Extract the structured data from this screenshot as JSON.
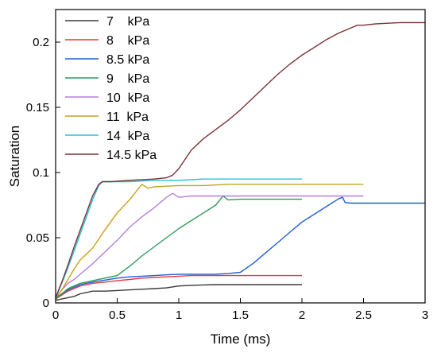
{
  "chart_data": {
    "type": "line",
    "title": "",
    "xlabel": "Time (ms)",
    "ylabel": "Saturation",
    "xlim": [
      0,
      3
    ],
    "ylim": [
      0,
      0.225
    ],
    "xticks": [
      0,
      0.5,
      1,
      1.5,
      2,
      2.5,
      3
    ],
    "xtick_labels": [
      "0",
      "0.5",
      "1",
      "1.5",
      "2",
      "2.5",
      "3"
    ],
    "yticks": [
      0,
      0.05,
      0.1,
      0.15,
      0.2
    ],
    "ytick_labels": [
      "0",
      "0.05",
      "0.1",
      "0.15",
      "0.2"
    ],
    "grid": false,
    "legend_position": "top-left",
    "series": [
      {
        "name": "7    kPa",
        "color": "#3a3a3a",
        "x": [
          0,
          0.05,
          0.1,
          0.15,
          0.2,
          0.25,
          0.3,
          0.35,
          0.4,
          0.5,
          0.6,
          0.7,
          0.8,
          0.9,
          1.0,
          1.1,
          1.2,
          1.3,
          1.4,
          1.5,
          1.6,
          1.7,
          1.8,
          1.9,
          2.0
        ],
        "y": [
          0.002,
          0.003,
          0.004,
          0.005,
          0.007,
          0.008,
          0.009,
          0.009,
          0.009,
          0.0095,
          0.01,
          0.0105,
          0.011,
          0.0115,
          0.013,
          0.0135,
          0.0138,
          0.014,
          0.014,
          0.014,
          0.014,
          0.014,
          0.014,
          0.014,
          0.014
        ]
      },
      {
        "name": "8    kPa",
        "color": "#e8383c",
        "x": [
          0,
          0.05,
          0.1,
          0.15,
          0.2,
          0.3,
          0.4,
          0.5,
          0.6,
          0.7,
          0.8,
          0.9,
          1.0,
          1.1,
          1.2,
          1.3,
          1.4,
          1.5,
          1.6,
          1.7,
          1.8,
          1.9,
          2.0
        ],
        "y": [
          0.003,
          0.006,
          0.009,
          0.011,
          0.013,
          0.015,
          0.016,
          0.017,
          0.018,
          0.019,
          0.0195,
          0.02,
          0.0205,
          0.021,
          0.021,
          0.021,
          0.021,
          0.021,
          0.021,
          0.021,
          0.021,
          0.021,
          0.021
        ]
      },
      {
        "name": "8.5 kPa",
        "color": "#1f5fd6",
        "x": [
          0,
          0.05,
          0.1,
          0.15,
          0.2,
          0.3,
          0.4,
          0.5,
          0.6,
          0.7,
          0.8,
          0.9,
          1.0,
          1.1,
          1.2,
          1.3,
          1.4,
          1.5,
          1.6,
          1.7,
          1.8,
          1.9,
          2.0,
          2.1,
          2.2,
          2.3,
          2.33,
          2.35,
          2.4,
          2.5,
          2.6,
          2.7,
          2.8,
          2.9,
          3.0
        ],
        "y": [
          0.004,
          0.007,
          0.01,
          0.012,
          0.014,
          0.016,
          0.0175,
          0.019,
          0.02,
          0.0205,
          0.021,
          0.0215,
          0.022,
          0.022,
          0.022,
          0.022,
          0.0225,
          0.0235,
          0.03,
          0.038,
          0.046,
          0.054,
          0.062,
          0.068,
          0.074,
          0.08,
          0.081,
          0.077,
          0.0765,
          0.0765,
          0.0765,
          0.0765,
          0.0765,
          0.0765,
          0.0765
        ]
      },
      {
        "name": "9    kPa",
        "color": "#2e9a58",
        "x": [
          0,
          0.05,
          0.1,
          0.15,
          0.2,
          0.3,
          0.4,
          0.5,
          0.6,
          0.7,
          0.8,
          0.9,
          1.0,
          1.1,
          1.2,
          1.3,
          1.36,
          1.4,
          1.5,
          1.6,
          1.7,
          1.8,
          1.9,
          2.0
        ],
        "y": [
          0.003,
          0.007,
          0.011,
          0.013,
          0.015,
          0.017,
          0.019,
          0.021,
          0.028,
          0.036,
          0.043,
          0.05,
          0.057,
          0.063,
          0.069,
          0.075,
          0.082,
          0.079,
          0.0795,
          0.0795,
          0.0795,
          0.0795,
          0.0795,
          0.0795
        ]
      },
      {
        "name": "10  kPa",
        "color": "#b57fe0",
        "x": [
          0,
          0.05,
          0.1,
          0.15,
          0.2,
          0.3,
          0.4,
          0.5,
          0.6,
          0.7,
          0.8,
          0.9,
          0.95,
          1.0,
          1.1,
          1.2,
          1.4,
          1.6,
          1.8,
          2.0,
          2.2,
          2.4,
          2.5
        ],
        "y": [
          0.004,
          0.01,
          0.015,
          0.018,
          0.022,
          0.03,
          0.039,
          0.048,
          0.058,
          0.066,
          0.073,
          0.081,
          0.084,
          0.081,
          0.082,
          0.082,
          0.082,
          0.082,
          0.082,
          0.082,
          0.082,
          0.082,
          0.082
        ]
      },
      {
        "name": "11  kPa",
        "color": "#c7a11d",
        "x": [
          0,
          0.05,
          0.1,
          0.15,
          0.2,
          0.3,
          0.4,
          0.5,
          0.6,
          0.7,
          0.75,
          0.8,
          0.9,
          1.0,
          1.2,
          1.4,
          1.6,
          1.8,
          2.0,
          2.2,
          2.4,
          2.5
        ],
        "y": [
          0.004,
          0.01,
          0.018,
          0.026,
          0.033,
          0.042,
          0.056,
          0.069,
          0.079,
          0.091,
          0.088,
          0.089,
          0.0895,
          0.09,
          0.09,
          0.091,
          0.091,
          0.091,
          0.091,
          0.091,
          0.091,
          0.091
        ]
      },
      {
        "name": "14  kPa",
        "color": "#28c0d8",
        "x": [
          0,
          0.05,
          0.1,
          0.15,
          0.2,
          0.25,
          0.3,
          0.35,
          0.38,
          0.45,
          0.6,
          0.8,
          1.0,
          1.2,
          1.4,
          1.6,
          1.8,
          2.0
        ],
        "y": [
          0.004,
          0.015,
          0.027,
          0.04,
          0.053,
          0.066,
          0.079,
          0.09,
          0.093,
          0.093,
          0.093,
          0.094,
          0.094,
          0.095,
          0.095,
          0.095,
          0.095,
          0.095
        ]
      },
      {
        "name": "14.5 kPa",
        "color": "#7a3236",
        "x": [
          0,
          0.05,
          0.1,
          0.15,
          0.2,
          0.25,
          0.3,
          0.35,
          0.38,
          0.45,
          0.6,
          0.8,
          0.9,
          0.95,
          1.0,
          1.05,
          1.1,
          1.2,
          1.3,
          1.4,
          1.5,
          1.6,
          1.7,
          1.8,
          1.9,
          2.0,
          2.1,
          2.2,
          2.3,
          2.4,
          2.45,
          2.5,
          2.6,
          2.7,
          2.8,
          2.9,
          3.0
        ],
        "y": [
          0.004,
          0.016,
          0.029,
          0.043,
          0.056,
          0.069,
          0.082,
          0.091,
          0.093,
          0.093,
          0.094,
          0.095,
          0.096,
          0.098,
          0.103,
          0.11,
          0.117,
          0.126,
          0.133,
          0.14,
          0.148,
          0.157,
          0.166,
          0.175,
          0.183,
          0.19,
          0.196,
          0.202,
          0.207,
          0.211,
          0.213,
          0.213,
          0.214,
          0.2145,
          0.215,
          0.215,
          0.215
        ]
      }
    ]
  }
}
